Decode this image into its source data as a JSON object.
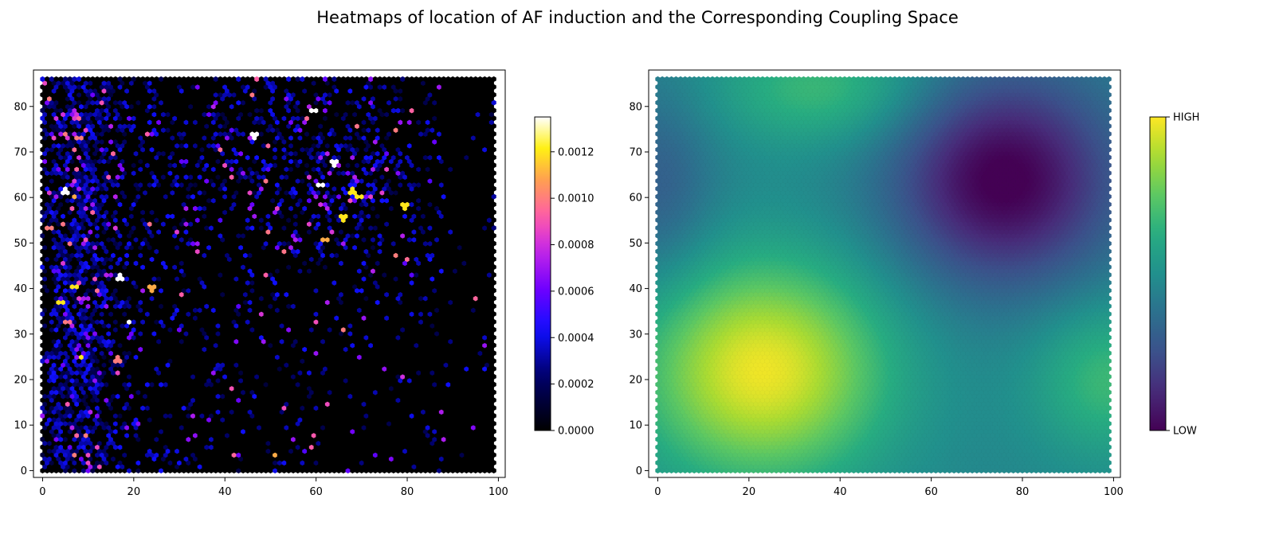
{
  "figure": {
    "title": "Heatmaps of location of AF induction and the Corresponding Coupling Space"
  },
  "chart_data": [
    {
      "type": "heatmap",
      "subtype": "hexbin",
      "title": "",
      "xlabel": "",
      "ylabel": "",
      "xlim": [
        -2,
        101.5
      ],
      "ylim": [
        -1.5,
        88
      ],
      "xticks": [
        0,
        20,
        40,
        60,
        80,
        100
      ],
      "yticks": [
        0,
        10,
        20,
        30,
        40,
        50,
        60,
        70,
        80
      ],
      "grid": false,
      "colormap": "gnuplot2",
      "colorbar": {
        "min": 0.0,
        "max": 0.00135,
        "ticks": [
          "0.0000",
          "0.0002",
          "0.0004",
          "0.0006",
          "0.0008",
          "0.0010",
          "0.0012"
        ],
        "tick_values": [
          0,
          0.0002,
          0.0004,
          0.0006,
          0.0008,
          0.001,
          0.0012
        ]
      },
      "grid_extent": {
        "x": [
          0,
          99
        ],
        "y": [
          0,
          86
        ]
      },
      "hot_spots": [
        {
          "x": 5,
          "y": 61.5,
          "value": 0.00135
        },
        {
          "x": 17,
          "y": 42.5,
          "value": 0.00135
        },
        {
          "x": 19,
          "y": 33,
          "value": 0.00135
        },
        {
          "x": 46.5,
          "y": 73.5,
          "value": 0.00135
        },
        {
          "x": 59.5,
          "y": 79,
          "value": 0.00135
        },
        {
          "x": 61,
          "y": 62.5,
          "value": 0.00135
        },
        {
          "x": 64,
          "y": 67.5,
          "value": 0.00135
        },
        {
          "x": 4,
          "y": 37,
          "value": 0.0012
        },
        {
          "x": 7,
          "y": 40.5,
          "value": 0.0012
        },
        {
          "x": 8.5,
          "y": 25,
          "value": 0.0012
        },
        {
          "x": 68,
          "y": 61.5,
          "value": 0.0012
        },
        {
          "x": 69.5,
          "y": 60,
          "value": 0.0012
        },
        {
          "x": 66,
          "y": 55.5,
          "value": 0.0012
        },
        {
          "x": 79.5,
          "y": 58,
          "value": 0.0012
        },
        {
          "x": 51,
          "y": 3.5,
          "value": 0.0011
        },
        {
          "x": 24,
          "y": 40,
          "value": 0.0011
        },
        {
          "x": 7,
          "y": 60,
          "value": 0.0011
        },
        {
          "x": 62,
          "y": 50.5,
          "value": 0.0011
        },
        {
          "x": 8,
          "y": 73,
          "value": 0.001
        },
        {
          "x": 5,
          "y": 74,
          "value": 0.001
        },
        {
          "x": 16.5,
          "y": 24.5,
          "value": 0.001
        },
        {
          "x": 7,
          "y": 3.5,
          "value": 0.001
        },
        {
          "x": 77.5,
          "y": 47.5,
          "value": 0.001
        },
        {
          "x": 1.5,
          "y": 53,
          "value": 0.001
        }
      ]
    },
    {
      "type": "heatmap",
      "subtype": "hexbin",
      "title": "",
      "xlabel": "",
      "ylabel": "",
      "xlim": [
        -2,
        101.5
      ],
      "ylim": [
        -1.5,
        88
      ],
      "xticks": [
        0,
        20,
        40,
        60,
        80,
        100
      ],
      "yticks": [
        0,
        10,
        20,
        30,
        40,
        50,
        60,
        70,
        80
      ],
      "grid": false,
      "colormap": "viridis",
      "colorbar": {
        "ticks": [
          "LOW",
          "HIGH"
        ],
        "tick_values": [
          0,
          1
        ]
      },
      "grid_extent": {
        "x": [
          0,
          99
        ],
        "y": [
          0,
          86
        ]
      },
      "field": {
        "base": 0.46,
        "components": [
          {
            "kind": "peak",
            "x": 23,
            "y": 22,
            "sx": 19,
            "sy": 17,
            "amp": 0.52
          },
          {
            "kind": "trough",
            "x": 76,
            "y": 64,
            "sx": 17,
            "sy": 16,
            "amp": 0.48
          },
          {
            "kind": "peak",
            "x": 36,
            "y": 84,
            "sx": 17,
            "sy": 9,
            "amp": 0.22
          },
          {
            "kind": "peak",
            "x": 99,
            "y": 20,
            "sx": 12,
            "sy": 12,
            "amp": 0.22
          },
          {
            "kind": "trough",
            "x": 0,
            "y": 62,
            "sx": 9,
            "sy": 16,
            "amp": 0.16
          }
        ]
      }
    }
  ]
}
